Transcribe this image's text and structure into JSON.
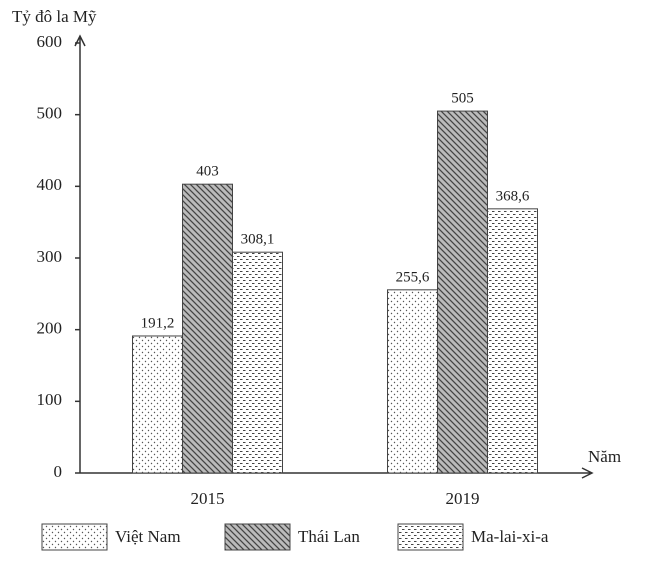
{
  "chart_data": {
    "type": "bar",
    "y_label": "Tỷ đô la Mỹ",
    "x_label": "Năm",
    "categories": [
      "2015",
      "2019"
    ],
    "series": [
      {
        "name": "Việt Nam",
        "color": "#555555",
        "pattern": "dots",
        "values": [
          191.2,
          255.6
        ],
        "value_labels": [
          "191,2",
          "255,6"
        ]
      },
      {
        "name": "Thái Lan",
        "color": "#444444",
        "pattern": "hatch",
        "values": [
          403,
          505
        ],
        "value_labels": [
          "403",
          "505"
        ]
      },
      {
        "name": "Ma-lai-xi-a",
        "color": "#444444",
        "pattern": "dashes",
        "values": [
          308.1,
          368.6
        ],
        "value_labels": [
          "308,1",
          "368,6"
        ]
      }
    ],
    "ylim": [
      0,
      600
    ],
    "yticks": [
      0,
      100,
      200,
      300,
      400,
      500,
      600
    ],
    "grid": false
  }
}
